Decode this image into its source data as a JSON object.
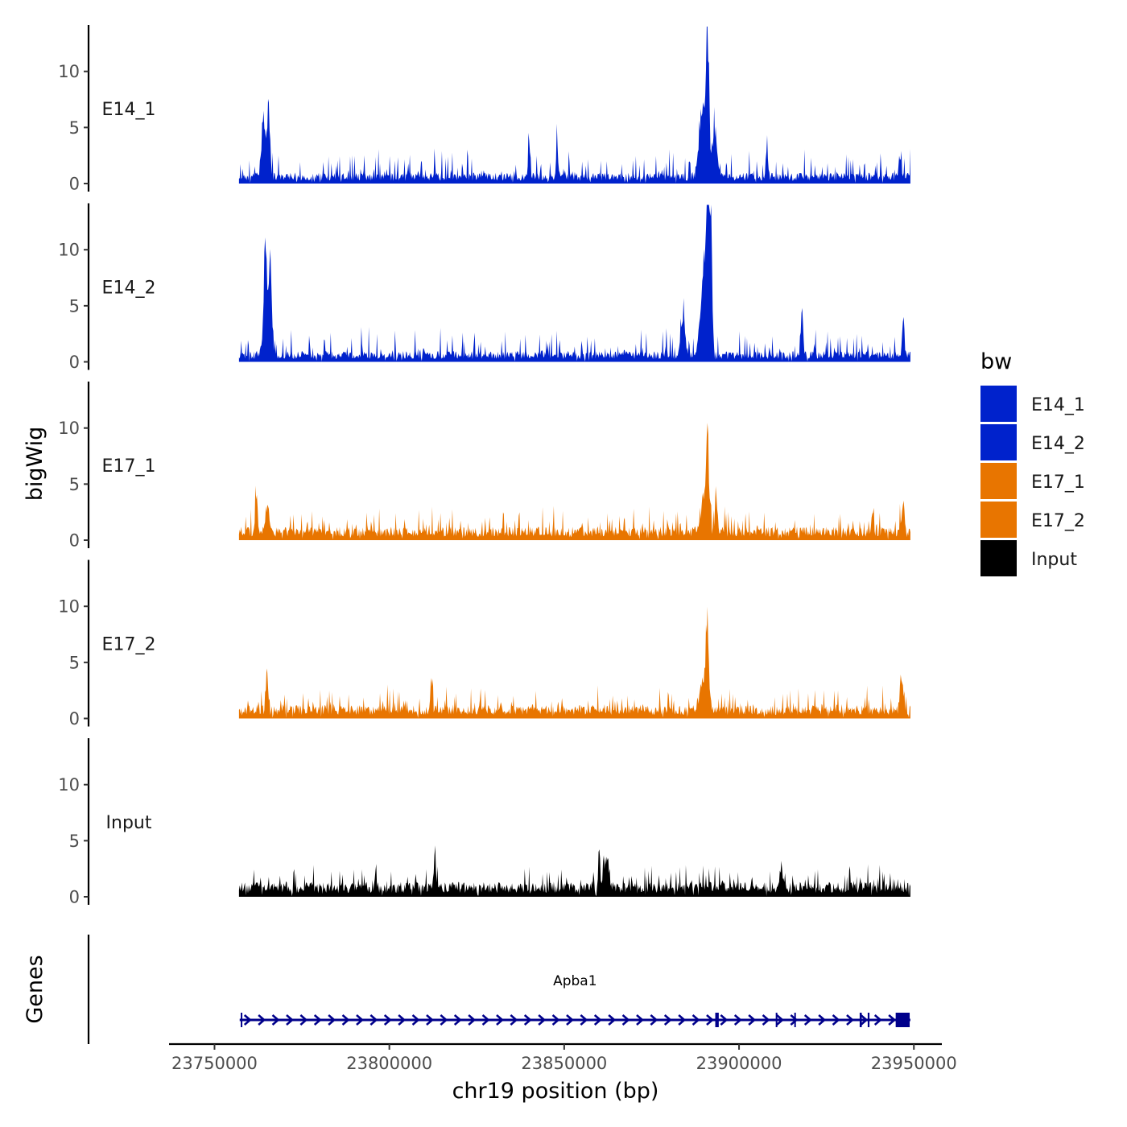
{
  "chart_data": {
    "type": "area",
    "title": "",
    "ylabel": "bigWig",
    "genes_label": "Genes",
    "xlabel": "chr19 position (bp)",
    "xlim": [
      23737000,
      23958000
    ],
    "region": [
      23757000,
      23949000
    ],
    "ylim": [
      0,
      14
    ],
    "yticks": [
      0,
      5,
      10
    ],
    "xticks": [
      23750000,
      23800000,
      23850000,
      23900000,
      23950000
    ],
    "xtick_labels": [
      "23750000",
      "23800000",
      "23850000",
      "23900000",
      "23950000"
    ],
    "legend": {
      "title": "bw",
      "position": "right",
      "entries": [
        {
          "label": "E14_1",
          "color": "#0022cc"
        },
        {
          "label": "E14_2",
          "color": "#0022cc"
        },
        {
          "label": "E17_1",
          "color": "#e87500"
        },
        {
          "label": "E17_2",
          "color": "#e87500"
        },
        {
          "label": "Input",
          "color": "#000000"
        }
      ]
    },
    "series": [
      {
        "name": "E14_1",
        "color": "#0022cc",
        "base": 0.8,
        "noise": 1.3,
        "seed": 11,
        "peaks": [
          {
            "x": 23764000,
            "y": 5.5,
            "w": 600
          },
          {
            "x": 23765500,
            "y": 6.8,
            "w": 400
          },
          {
            "x": 23840000,
            "y": 2.8,
            "w": 300
          },
          {
            "x": 23848000,
            "y": 3.2,
            "w": 300
          },
          {
            "x": 23891000,
            "y": 13.6,
            "w": 400
          },
          {
            "x": 23889500,
            "y": 6.5,
            "w": 900
          },
          {
            "x": 23893000,
            "y": 4.5,
            "w": 700
          },
          {
            "x": 23908000,
            "y": 3.2,
            "w": 300
          },
          {
            "x": 23946000,
            "y": 2.5,
            "w": 300
          }
        ]
      },
      {
        "name": "E14_2",
        "color": "#0022cc",
        "base": 0.8,
        "noise": 1.3,
        "seed": 23,
        "peaks": [
          {
            "x": 23764500,
            "y": 8.8,
            "w": 350
          },
          {
            "x": 23766000,
            "y": 8.1,
            "w": 350
          },
          {
            "x": 23765000,
            "y": 4.0,
            "w": 900
          },
          {
            "x": 23884000,
            "y": 3.8,
            "w": 600
          },
          {
            "x": 23891000,
            "y": 13.0,
            "w": 400
          },
          {
            "x": 23892000,
            "y": 12.2,
            "w": 350
          },
          {
            "x": 23890000,
            "y": 7.0,
            "w": 1000
          },
          {
            "x": 23918000,
            "y": 4.2,
            "w": 300
          },
          {
            "x": 23947000,
            "y": 3.8,
            "w": 300
          }
        ]
      },
      {
        "name": "E17_1",
        "color": "#e87500",
        "base": 1.0,
        "noise": 1.2,
        "seed": 37,
        "peaks": [
          {
            "x": 23762000,
            "y": 4.0,
            "w": 300
          },
          {
            "x": 23765000,
            "y": 2.8,
            "w": 500
          },
          {
            "x": 23891000,
            "y": 9.2,
            "w": 350
          },
          {
            "x": 23890000,
            "y": 3.5,
            "w": 900
          },
          {
            "x": 23893500,
            "y": 3.6,
            "w": 350
          },
          {
            "x": 23947000,
            "y": 2.6,
            "w": 400
          }
        ]
      },
      {
        "name": "E17_2",
        "color": "#e87500",
        "base": 1.0,
        "noise": 1.2,
        "seed": 53,
        "peaks": [
          {
            "x": 23765000,
            "y": 4.0,
            "w": 300
          },
          {
            "x": 23812000,
            "y": 3.4,
            "w": 300
          },
          {
            "x": 23891000,
            "y": 6.4,
            "w": 350
          },
          {
            "x": 23890000,
            "y": 3.2,
            "w": 1000
          },
          {
            "x": 23946500,
            "y": 4.0,
            "w": 400
          }
        ]
      },
      {
        "name": "Input",
        "color": "#000000",
        "base": 1.1,
        "noise": 1.1,
        "seed": 71,
        "peaks": [
          {
            "x": 23813000,
            "y": 2.9,
            "w": 300
          },
          {
            "x": 23860000,
            "y": 3.1,
            "w": 250
          },
          {
            "x": 23862000,
            "y": 2.5,
            "w": 800
          },
          {
            "x": 23912000,
            "y": 2.6,
            "w": 300
          }
        ]
      }
    ],
    "gene": {
      "name": "Apba1",
      "strand": "+",
      "color": "#00008b",
      "start": 23757200,
      "end": 23949000,
      "exons": [
        [
          23757500,
          23757900
        ],
        [
          23893200,
          23894200
        ],
        [
          23910500,
          23910900
        ],
        [
          23915800,
          23916200
        ],
        [
          23934500,
          23935100
        ],
        [
          23936800,
          23937300
        ],
        [
          23944800,
          23948800
        ]
      ]
    }
  }
}
